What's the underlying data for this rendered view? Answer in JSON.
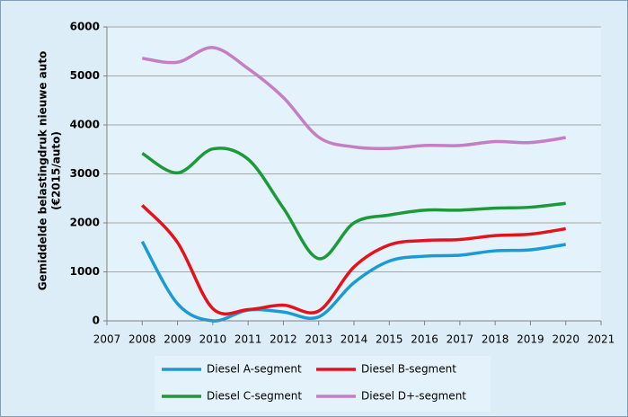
{
  "chart_data": {
    "type": "line",
    "ylabel": [
      "Gemiddelde belastingdruk nieuwe auto",
      "(€2015/auto)"
    ],
    "x": [
      2008,
      2009,
      2010,
      2011,
      2012,
      2013,
      2014,
      2015,
      2016,
      2017,
      2018,
      2019,
      2020
    ],
    "xlim": [
      2007,
      2021
    ],
    "xticks": [
      2007,
      2008,
      2009,
      2010,
      2011,
      2012,
      2013,
      2014,
      2015,
      2016,
      2017,
      2018,
      2019,
      2020,
      2021
    ],
    "ylim": [
      0,
      6000
    ],
    "yticks": [
      0,
      1000,
      2000,
      3000,
      4000,
      5000,
      6000
    ],
    "grid": true,
    "smooth": true,
    "legend": "bottom",
    "series": [
      {
        "name": "Diesel A-segment",
        "color": "#1b9ad6",
        "values": [
          1620,
          350,
          0,
          220,
          180,
          80,
          780,
          1220,
          1320,
          1340,
          1430,
          1450,
          1560
        ]
      },
      {
        "name": "Diesel B-segment",
        "color": "#e3121b",
        "values": [
          2360,
          1600,
          250,
          230,
          320,
          200,
          1100,
          1550,
          1640,
          1660,
          1740,
          1770,
          1880
        ]
      },
      {
        "name": "Diesel C-segment",
        "color": "#1c9a3a",
        "values": [
          3420,
          3020,
          3510,
          3300,
          2300,
          1270,
          2000,
          2160,
          2260,
          2260,
          2300,
          2320,
          2400
        ]
      },
      {
        "name": "Diesel D+-segment",
        "color": "#c57dc6",
        "values": [
          5360,
          5280,
          5580,
          5150,
          4560,
          3750,
          3550,
          3520,
          3580,
          3580,
          3660,
          3640,
          3740
        ]
      }
    ]
  }
}
